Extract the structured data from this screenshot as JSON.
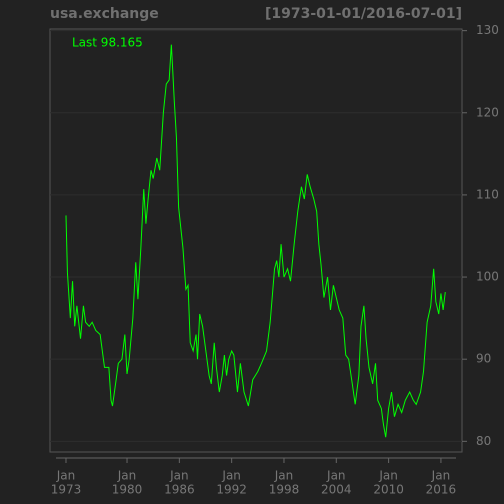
{
  "chart_data": {
    "type": "line",
    "title": "usa.exchange",
    "subtitle": "[1973-01-01/2016-07-01]",
    "annotation": "Last 98.165",
    "color": "#00ff00",
    "grid": true,
    "xlim": [
      "1971-03",
      "2018-06"
    ],
    "ylim": [
      78.7,
      130.2
    ],
    "yticks": [
      80,
      90,
      100,
      110,
      120,
      130
    ],
    "xticks": [
      {
        "value": "1973-01",
        "label": [
          "Jan",
          "1973"
        ]
      },
      {
        "value": "1980-01",
        "label": [
          "Jan",
          "1980"
        ]
      },
      {
        "value": "1986-01",
        "label": [
          "Jan",
          "1986"
        ]
      },
      {
        "value": "1992-01",
        "label": [
          "Jan",
          "1992"
        ]
      },
      {
        "value": "1998-01",
        "label": [
          "Jan",
          "1998"
        ]
      },
      {
        "value": "2004-01",
        "label": [
          "Jan",
          "2004"
        ]
      },
      {
        "value": "2010-01",
        "label": [
          "Jan",
          "2010"
        ]
      },
      {
        "value": "2016-01",
        "label": [
          "Jan",
          "2016"
        ]
      }
    ],
    "x": [
      "1973-01",
      "1973-03",
      "1973-07",
      "1973-10",
      "1974-01",
      "1974-04",
      "1974-09",
      "1975-01",
      "1975-04",
      "1975-09",
      "1976-01",
      "1976-06",
      "1976-12",
      "1977-06",
      "1977-12",
      "1978-03",
      "1978-05",
      "1978-10",
      "1979-01",
      "1979-06",
      "1979-10",
      "1980-01",
      "1980-04",
      "1980-09",
      "1981-01",
      "1981-04",
      "1981-08",
      "1981-12",
      "1982-03",
      "1982-06",
      "1982-10",
      "1983-01",
      "1983-06",
      "1983-10",
      "1984-03",
      "1984-07",
      "1984-11",
      "1985-02",
      "1985-04",
      "1985-06",
      "1985-09",
      "1985-12",
      "1986-03",
      "1986-06",
      "1986-10",
      "1987-01",
      "1987-04",
      "1987-08",
      "1987-12",
      "1988-02",
      "1988-05",
      "1988-09",
      "1988-12",
      "1989-03",
      "1989-06",
      "1989-09",
      "1990-01",
      "1990-04",
      "1990-08",
      "1990-12",
      "1991-03",
      "1991-06",
      "1991-09",
      "1992-01",
      "1992-04",
      "1992-09",
      "1993-01",
      "1993-06",
      "1993-12",
      "1994-06",
      "1995-01",
      "1995-06",
      "1996-01",
      "1996-06",
      "1996-12",
      "1997-03",
      "1997-06",
      "1997-09",
      "1998-01",
      "1998-06",
      "1998-10",
      "1999-03",
      "1999-08",
      "2000-01",
      "2000-05",
      "2000-09",
      "2001-01",
      "2001-06",
      "2001-10",
      "2002-01",
      "2002-04",
      "2002-08",
      "2003-01",
      "2003-05",
      "2003-09",
      "2004-01",
      "2004-05",
      "2004-10",
      "2005-02",
      "2005-06",
      "2005-11",
      "2006-03",
      "2006-08",
      "2006-11",
      "2007-03",
      "2007-06",
      "2007-10",
      "2008-03",
      "2008-07",
      "2008-10",
      "2009-03",
      "2009-06",
      "2009-09",
      "2010-01",
      "2010-05",
      "2010-09",
      "2011-02",
      "2011-07",
      "2011-12",
      "2012-06",
      "2012-11",
      "2013-03",
      "2013-09",
      "2014-01",
      "2014-06",
      "2014-11",
      "2015-03",
      "2015-06",
      "2015-10",
      "2016-01",
      "2016-04",
      "2016-07"
    ],
    "values": [
      107.5,
      100.5,
      95,
      99.5,
      94,
      96.5,
      92.5,
      96.5,
      94.5,
      94,
      94.5,
      93.5,
      93,
      89,
      89,
      85,
      84.3,
      87.5,
      89.5,
      90,
      93,
      88.2,
      90,
      95,
      101.8,
      97.3,
      103.5,
      110.7,
      106.5,
      109.5,
      113,
      112,
      114.5,
      113,
      120,
      123.5,
      124,
      128.3,
      125,
      121.5,
      117,
      108.5,
      106,
      103.5,
      98.5,
      99,
      92,
      91,
      93,
      90,
      95.5,
      94,
      92,
      90,
      88,
      87,
      92,
      89,
      86,
      88,
      90.5,
      88,
      90,
      91,
      90.5,
      86,
      89.5,
      86,
      84.3,
      87.5,
      88.5,
      89.5,
      91,
      94.5,
      101,
      102,
      100,
      104,
      100,
      101,
      99.5,
      104,
      108,
      111,
      109.5,
      112.5,
      111,
      109.5,
      108,
      104,
      101.5,
      97.5,
      100,
      96,
      99,
      97.5,
      96,
      95,
      90.5,
      90,
      87,
      84.5,
      88,
      94,
      96.5,
      92.5,
      89,
      87,
      89.5,
      85,
      84,
      82,
      80.5,
      84,
      86,
      83,
      84.5,
      83.5,
      85,
      86,
      85,
      84.5,
      86,
      88.5,
      94.5,
      96.5,
      101,
      97,
      95.5,
      98,
      96,
      98.165
    ]
  }
}
